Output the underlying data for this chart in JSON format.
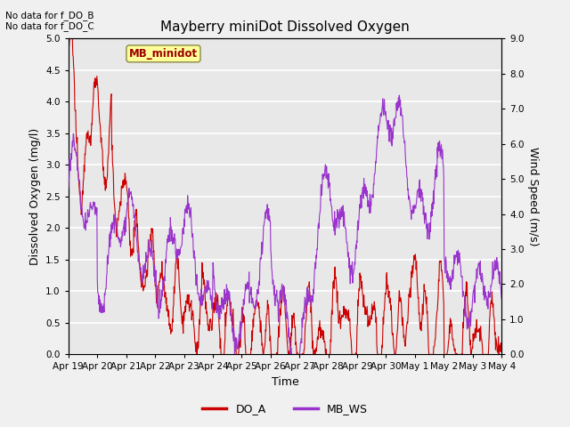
{
  "title": "Mayberry miniDot Dissolved Oxygen",
  "xlabel": "Time",
  "ylabel_left": "Dissolved Oxygen (mg/l)",
  "ylabel_right": "Wind Speed (m/s)",
  "annotations": [
    "No data for f_DO_B",
    "No data for f_DO_C"
  ],
  "legend_box_label": "MB_minidot",
  "ylim_left": [
    0.0,
    5.0
  ],
  "ylim_right": [
    0.0,
    9.0
  ],
  "yticks_left": [
    0.0,
    0.5,
    1.0,
    1.5,
    2.0,
    2.5,
    3.0,
    3.5,
    4.0,
    4.5,
    5.0
  ],
  "yticks_right": [
    0.0,
    1.0,
    2.0,
    3.0,
    4.0,
    5.0,
    6.0,
    7.0,
    8.0,
    9.0
  ],
  "xtick_labels": [
    "Apr 19",
    "Apr 20",
    "Apr 21",
    "Apr 22",
    "Apr 23",
    "Apr 24",
    "Apr 25",
    "Apr 26",
    "Apr 27",
    "Apr 28",
    "Apr 29",
    "Apr 30",
    "May 1",
    "May 2",
    "May 3",
    "May 4"
  ],
  "color_do": "#cc0000",
  "color_ws": "#9933cc",
  "bg_color": "#e8e8e8",
  "grid_color": "#ffffff",
  "fig_bg": "#f0f0f0",
  "linewidth": 0.8,
  "legend_line_color_do": "#cc0000",
  "legend_line_color_ws": "#9933cc"
}
